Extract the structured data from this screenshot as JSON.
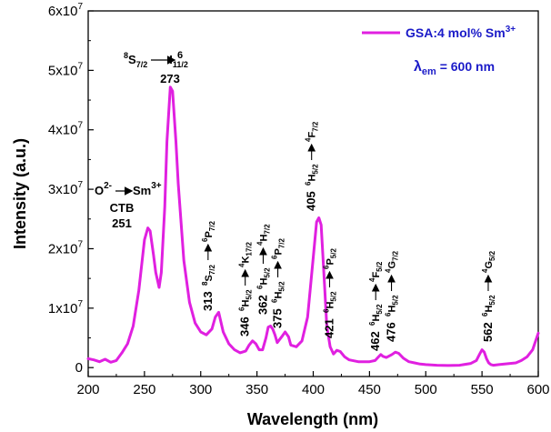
{
  "chart_data": {
    "type": "line",
    "xlabel": "Wavelength (nm)",
    "ylabel": "Intensity (a.u.)",
    "xlim": [
      200,
      600
    ],
    "ylim": [
      -1500000,
      60000000
    ],
    "x_ticks": [
      200,
      250,
      300,
      350,
      400,
      450,
      500,
      550,
      600
    ],
    "y_ticks": [
      {
        "value": 0,
        "label": "0"
      },
      {
        "value": 10000000,
        "base": "1x10",
        "exp": "7"
      },
      {
        "value": 20000000,
        "base": "2x10",
        "exp": "7"
      },
      {
        "value": 30000000,
        "base": "3x10",
        "exp": "7"
      },
      {
        "value": 40000000,
        "base": "4x10",
        "exp": "7"
      },
      {
        "value": 50000000,
        "base": "5x10",
        "exp": "7"
      },
      {
        "value": 60000000,
        "base": "6x10",
        "exp": "7"
      }
    ],
    "series": [
      {
        "name": "GSA:4 mol% Sm³⁺",
        "color": "#e020e0",
        "x": [
          200,
          205,
          210,
          215,
          220,
          225,
          230,
          235,
          240,
          245,
          250,
          253,
          255,
          258,
          260,
          263,
          265,
          268,
          270,
          273,
          275,
          278,
          280,
          285,
          290,
          295,
          300,
          305,
          310,
          313,
          316,
          320,
          325,
          330,
          335,
          340,
          343,
          346,
          349,
          352,
          355,
          358,
          360,
          362,
          364,
          366,
          368,
          372,
          375,
          378,
          380,
          385,
          390,
          395,
          400,
          403,
          405,
          407,
          410,
          412,
          415,
          418,
          421,
          424,
          428,
          432,
          440,
          450,
          455,
          458,
          460,
          462,
          465,
          470,
          473,
          476,
          480,
          485,
          490,
          495,
          500,
          510,
          520,
          530,
          540,
          545,
          548,
          550,
          552,
          554,
          556,
          558,
          560,
          565,
          570,
          580,
          585,
          590,
          595,
          600
        ],
        "y": [
          1500000,
          1300000,
          1000000,
          1400000,
          900000,
          1200000,
          2500000,
          4000000,
          7000000,
          13000000,
          21500000,
          23500000,
          23000000,
          19000000,
          16000000,
          13500000,
          16000000,
          27000000,
          38000000,
          47200000,
          46500000,
          38000000,
          31000000,
          18000000,
          11000000,
          7500000,
          6000000,
          5500000,
          6500000,
          8500000,
          9300000,
          6000000,
          4000000,
          3000000,
          2500000,
          2800000,
          3800000,
          4500000,
          4000000,
          3000000,
          3000000,
          5000000,
          6800000,
          7000000,
          6500000,
          5500000,
          4200000,
          5200000,
          6000000,
          5200000,
          3800000,
          3500000,
          4500000,
          8500000,
          18500000,
          24500000,
          25200000,
          24000000,
          14000000,
          7000000,
          3500000,
          2300000,
          2900000,
          2700000,
          1800000,
          1300000,
          1000000,
          1000000,
          1200000,
          1800000,
          2200000,
          1900000,
          1700000,
          2200000,
          2600000,
          2400000,
          1600000,
          1000000,
          800000,
          600000,
          500000,
          400000,
          350000,
          400000,
          700000,
          1200000,
          2300000,
          3000000,
          2600000,
          1500000,
          800000,
          500000,
          400000,
          500000,
          600000,
          800000,
          1200000,
          1800000,
          3000000,
          5800000
        ]
      }
    ],
    "legend": {
      "label_main": "GSA:4 mol% Sm",
      "label_sup": "3+",
      "position": "top-right",
      "lambda_text": "λ",
      "lambda_sub": "em",
      "lambda_value": " = 600 nm"
    },
    "annotations": {
      "peak_273": {
        "x": 273,
        "y": 47200000,
        "label": "273",
        "transition_from": "8S7/2",
        "transition_to": "6I11/2"
      },
      "ctb": {
        "x": 251,
        "y": 23500000,
        "label": "251",
        "ctb_label": "CTB",
        "o_text": "O",
        "o_sup": "2-",
        "sm_text": "Sm",
        "sm_sup": "3+"
      },
      "peak_313": {
        "x": 313,
        "label": "313",
        "lower": "8S7/2",
        "upper": "6P7/2"
      },
      "peak_346": {
        "x": 346,
        "label": "346",
        "lower": "6H5/2",
        "upper": "4K17/2"
      },
      "peak_362": {
        "x": 362,
        "label": "362",
        "lower": "6H5/2",
        "upper": "4H7/2"
      },
      "peak_375": {
        "x": 375,
        "label": "375",
        "lower": "6H5/2",
        "upper": "6P7/2"
      },
      "peak_405": {
        "x": 405,
        "label": "405",
        "lower": "6H5/2",
        "upper": "4F7/2"
      },
      "peak_421": {
        "x": 421,
        "label": "421",
        "lower": "6H5/2",
        "upper": "6P5/2"
      },
      "peak_462": {
        "x": 462,
        "label": "462",
        "lower": "6H5/2",
        "upper": "4F5/2"
      },
      "peak_476": {
        "x": 476,
        "label": "476",
        "lower": "6H5/2",
        "upper": "4G7/2"
      },
      "peak_562": {
        "x": 562,
        "label": "562",
        "lower": "6H5/2",
        "upper": "4G5/2"
      }
    }
  }
}
